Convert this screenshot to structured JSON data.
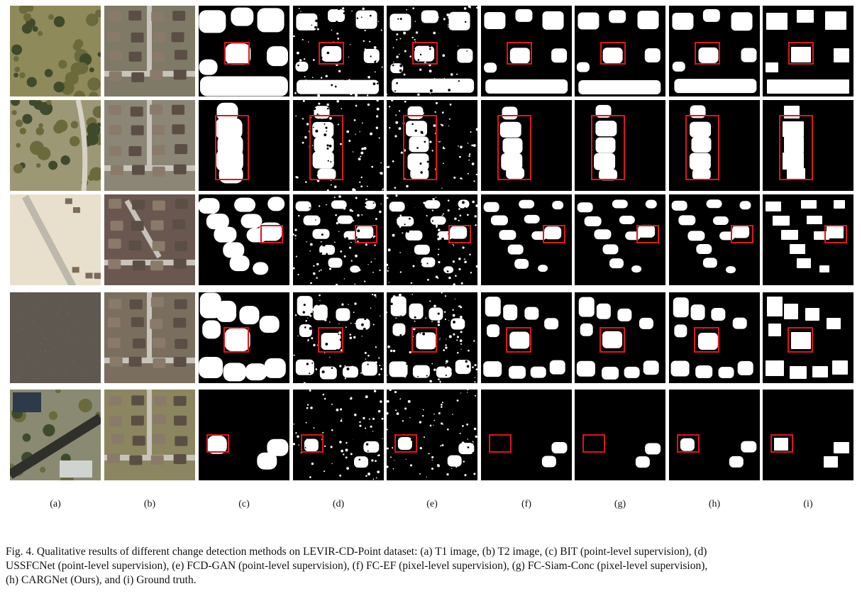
{
  "figure": {
    "columns": [
      {
        "label": "(a)",
        "kind": "t1"
      },
      {
        "label": "(b)",
        "kind": "t2"
      },
      {
        "label": "(c)",
        "kind": "mask"
      },
      {
        "label": "(d)",
        "kind": "mask"
      },
      {
        "label": "(e)",
        "kind": "mask"
      },
      {
        "label": "(f)",
        "kind": "mask"
      },
      {
        "label": "(g)",
        "kind": "mask"
      },
      {
        "label": "(h)",
        "kind": "mask"
      },
      {
        "label": "(i)",
        "kind": "mask"
      }
    ],
    "rows": 5,
    "colors": {
      "mask_background": "#000000",
      "mask_foreground": "#ffffff",
      "highlight_box": "#e0141e",
      "t1_vegetation": "#6b6a3c",
      "t1_soil": "#a89b72",
      "t2_roof": "#5b4e44",
      "t2_road": "#c8c4bc"
    }
  },
  "caption": {
    "line1": "Fig. 4.  Qualitative results of different change detection methods on LEVIR-CD-Point dataset: (a) T1 image, (b) T2 image, (c) BIT (point-level supervision), (d)",
    "line2": "USSFCNet (point-level supervision), (e) FCD-GAN (point-level supervision), (f) FC-EF (pixel-level supervision), (g) FC-Siam-Conc (pixel-level supervision),",
    "line3": "(h) CARGNet (Ours), and (i) Ground truth."
  }
}
